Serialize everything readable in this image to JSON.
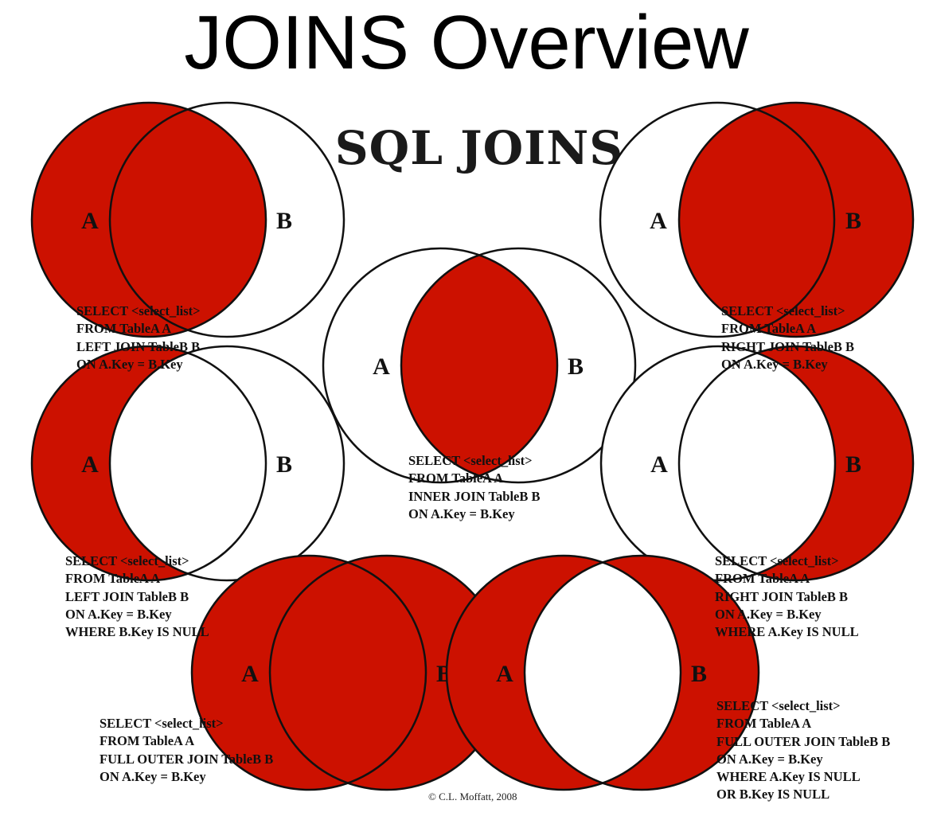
{
  "slide_title": "JOINS Overview",
  "diagram_title": "SQL JOINS",
  "colors": {
    "fill": "#cc1100",
    "stroke": "#111111",
    "background": "#ffffff"
  },
  "labels": {
    "a": "A",
    "b": "B"
  },
  "joins": [
    {
      "id": "left-join",
      "shading": "a-all",
      "sql": [
        "SELECT <select_list>",
        "FROM TableA A",
        "LEFT JOIN TableB B",
        "ON A.Key = B.Key"
      ]
    },
    {
      "id": "right-join",
      "shading": "b-all",
      "sql": [
        "SELECT <select_list>",
        "FROM TableA A",
        "RIGHT JOIN TableB B",
        "ON A.Key = B.Key"
      ]
    },
    {
      "id": "inner-join",
      "shading": "intersection",
      "sql": [
        "SELECT <select_list>",
        "FROM TableA A",
        "INNER JOIN TableB B",
        "ON A.Key = B.Key"
      ]
    },
    {
      "id": "left-excluding-join",
      "shading": "a-only",
      "sql": [
        "SELECT <select_list>",
        "FROM TableA A",
        "LEFT JOIN TableB B",
        "ON A.Key = B.Key",
        "WHERE B.Key IS NULL"
      ]
    },
    {
      "id": "right-excluding-join",
      "shading": "b-only",
      "sql": [
        "SELECT <select_list>",
        "FROM TableA A",
        "RIGHT JOIN TableB B",
        "ON A.Key = B.Key",
        "WHERE A.Key IS NULL"
      ]
    },
    {
      "id": "full-outer-join",
      "shading": "union",
      "sql": [
        "SELECT <select_list>",
        "FROM TableA A",
        "FULL OUTER JOIN TableB B",
        "ON A.Key = B.Key"
      ]
    },
    {
      "id": "outer-excluding-join",
      "shading": "symmetric-difference",
      "sql": [
        "SELECT <select_list>",
        "FROM TableA A",
        "FULL OUTER JOIN TableB B",
        "ON A.Key = B.Key",
        "WHERE A.Key IS NULL",
        "OR B.Key IS NULL"
      ]
    }
  ],
  "credit": "© C.L. Moffatt, 2008"
}
